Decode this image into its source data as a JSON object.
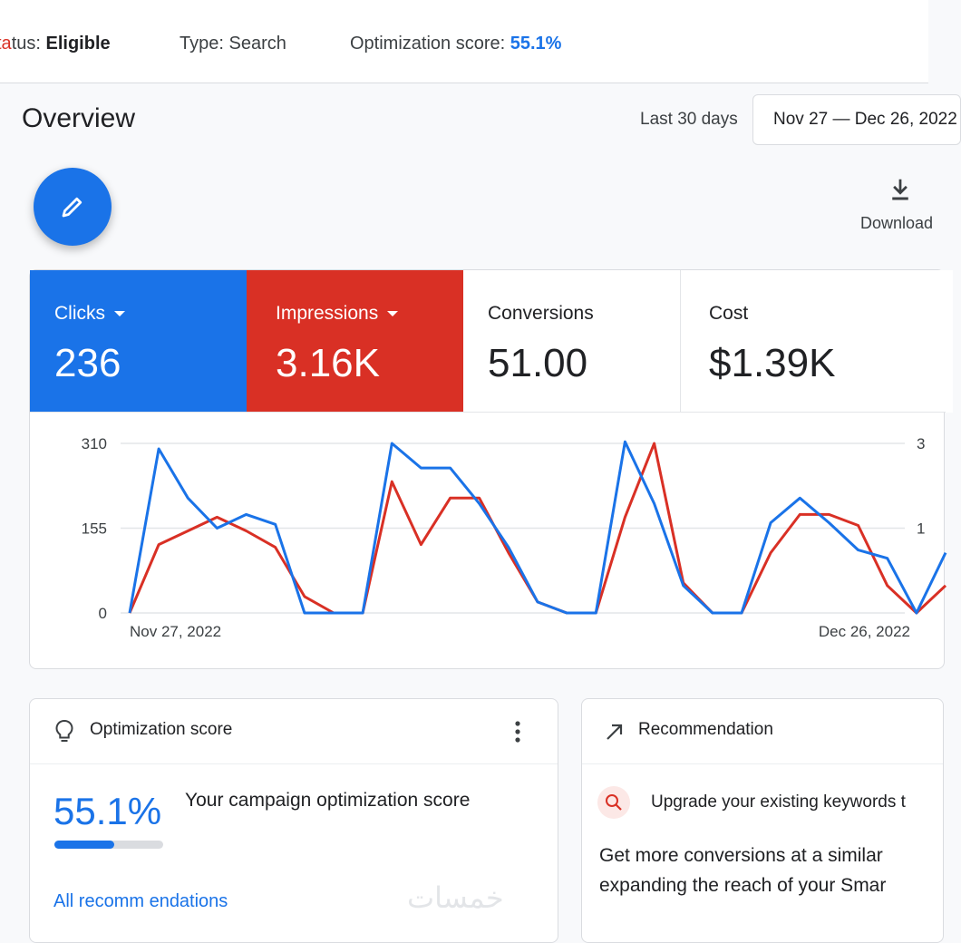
{
  "statusbar": {
    "status_prefix_colored": "ta",
    "status_prefix_rest": "tus:",
    "status_value": "Eligible",
    "type_label": "Type:",
    "type_value": "Search",
    "opt_label": "Optimization score:",
    "opt_value": "55.1%"
  },
  "overview": {
    "title": "Overview",
    "range_label": "Last 30 days",
    "date_range": "Nov 27 — Dec 26, 2022"
  },
  "toolbar": {
    "download_label": "Download"
  },
  "metrics": {
    "clicks": {
      "label": "Clicks",
      "value": "236"
    },
    "impressions": {
      "label": "Impressions",
      "value": "3.16K"
    },
    "conversions": {
      "label": "Conversions",
      "value": "51.00"
    },
    "cost": {
      "label": "Cost",
      "value": "$1.39K"
    }
  },
  "chart_data": {
    "type": "line",
    "title": "",
    "xlabel": "",
    "ylabel": "",
    "x_tick_labels": [
      "Nov 27, 2022",
      "Dec 26, 2022"
    ],
    "y_ticks": [
      0,
      155,
      310
    ],
    "right_axis_ticks": [
      "3",
      "1"
    ],
    "ylim": [
      0,
      310
    ],
    "series": [
      {
        "name": "Clicks",
        "color": "#1a73e8",
        "values": [
          0,
          300,
          210,
          155,
          180,
          162,
          0,
          0,
          0,
          310,
          265,
          265,
          200,
          120,
          20,
          0,
          0,
          313,
          200,
          50,
          0,
          0,
          165,
          210,
          165,
          115,
          100,
          0,
          110
        ]
      },
      {
        "name": "Impressions",
        "color": "#d93025",
        "values": [
          0,
          125,
          150,
          175,
          150,
          120,
          30,
          0,
          0,
          240,
          125,
          210,
          210,
          110,
          20,
          0,
          0,
          175,
          310,
          55,
          0,
          0,
          110,
          180,
          180,
          160,
          50,
          0,
          50
        ]
      }
    ]
  },
  "opt_card": {
    "title": "Optimization score",
    "score": "55.1%",
    "score_fraction": 0.551,
    "description": "Your campaign optimization score",
    "link": "All recomm endations",
    "watermark": "خمسات"
  },
  "rec_card": {
    "title": "Recommendation",
    "line1": "Upgrade your existing keywords t",
    "line2": "Get more conversions at a similar",
    "line3": "expanding the reach of your Smar"
  },
  "colors": {
    "accent": "#1a73e8",
    "impressions": "#d93025"
  }
}
